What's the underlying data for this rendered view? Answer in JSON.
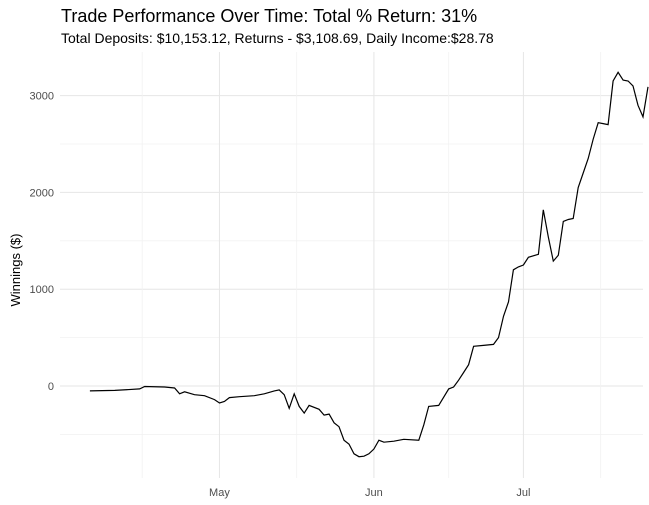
{
  "chart_data": {
    "type": "line",
    "title": "Trade Performance Over Time: Total % Return: 31%",
    "subtitle": "Total Deposits: $10,153.12, Returns - $3,108.69, Daily Income:$28.78",
    "xlabel": "",
    "ylabel": "Winnings ($)",
    "x_ticks": [
      {
        "label": "May",
        "date": "2023-05-01"
      },
      {
        "label": "Jun",
        "date": "2023-06-01"
      },
      {
        "label": "Jul",
        "date": "2023-07-01"
      }
    ],
    "y_ticks": [
      0,
      1000,
      2000,
      3000
    ],
    "xlim": [
      "2023-03-30",
      "2023-07-25"
    ],
    "ylim": [
      -950,
      3450
    ],
    "grid": true,
    "legend": "none",
    "line_color": "#000000",
    "series": [
      {
        "points": [
          [
            "2023-04-05",
            -50
          ],
          [
            "2023-04-10",
            -45
          ],
          [
            "2023-04-15",
            -30
          ],
          [
            "2023-04-16",
            -5
          ],
          [
            "2023-04-20",
            -10
          ],
          [
            "2023-04-22",
            -20
          ],
          [
            "2023-04-23",
            -80
          ],
          [
            "2023-04-24",
            -60
          ],
          [
            "2023-04-26",
            -90
          ],
          [
            "2023-04-28",
            -100
          ],
          [
            "2023-04-30",
            -140
          ],
          [
            "2023-05-01",
            -175
          ],
          [
            "2023-05-02",
            -160
          ],
          [
            "2023-05-03",
            -120
          ],
          [
            "2023-05-05",
            -110
          ],
          [
            "2023-05-08",
            -100
          ],
          [
            "2023-05-10",
            -80
          ],
          [
            "2023-05-12",
            -50
          ],
          [
            "2023-05-13",
            -40
          ],
          [
            "2023-05-14",
            -90
          ],
          [
            "2023-05-15",
            -230
          ],
          [
            "2023-05-16",
            -80
          ],
          [
            "2023-05-17",
            -210
          ],
          [
            "2023-05-18",
            -280
          ],
          [
            "2023-05-19",
            -200
          ],
          [
            "2023-05-21",
            -240
          ],
          [
            "2023-05-22",
            -300
          ],
          [
            "2023-05-23",
            -290
          ],
          [
            "2023-05-24",
            -380
          ],
          [
            "2023-05-25",
            -420
          ],
          [
            "2023-05-26",
            -560
          ],
          [
            "2023-05-27",
            -600
          ],
          [
            "2023-05-28",
            -700
          ],
          [
            "2023-05-29",
            -730
          ],
          [
            "2023-05-30",
            -725
          ],
          [
            "2023-05-31",
            -700
          ],
          [
            "2023-06-01",
            -650
          ],
          [
            "2023-06-02",
            -560
          ],
          [
            "2023-06-03",
            -580
          ],
          [
            "2023-06-05",
            -570
          ],
          [
            "2023-06-07",
            -550
          ],
          [
            "2023-06-10",
            -560
          ],
          [
            "2023-06-11",
            -400
          ],
          [
            "2023-06-12",
            -210
          ],
          [
            "2023-06-14",
            -200
          ],
          [
            "2023-06-16",
            -30
          ],
          [
            "2023-06-17",
            -10
          ],
          [
            "2023-06-18",
            60
          ],
          [
            "2023-06-19",
            140
          ],
          [
            "2023-06-20",
            220
          ],
          [
            "2023-06-21",
            410
          ],
          [
            "2023-06-23",
            420
          ],
          [
            "2023-06-25",
            430
          ],
          [
            "2023-06-26",
            500
          ],
          [
            "2023-06-27",
            720
          ],
          [
            "2023-06-28",
            870
          ],
          [
            "2023-06-29",
            1200
          ],
          [
            "2023-06-30",
            1230
          ],
          [
            "2023-07-01",
            1250
          ],
          [
            "2023-07-02",
            1330
          ],
          [
            "2023-07-04",
            1360
          ],
          [
            "2023-07-05",
            1820
          ],
          [
            "2023-07-06",
            1540
          ],
          [
            "2023-07-07",
            1290
          ],
          [
            "2023-07-08",
            1350
          ],
          [
            "2023-07-09",
            1700
          ],
          [
            "2023-07-10",
            1720
          ],
          [
            "2023-07-11",
            1730
          ],
          [
            "2023-07-12",
            2050
          ],
          [
            "2023-07-13",
            2200
          ],
          [
            "2023-07-14",
            2350
          ],
          [
            "2023-07-15",
            2550
          ],
          [
            "2023-07-16",
            2720
          ],
          [
            "2023-07-17",
            2710
          ],
          [
            "2023-07-18",
            2700
          ],
          [
            "2023-07-19",
            3150
          ],
          [
            "2023-07-20",
            3240
          ],
          [
            "2023-07-21",
            3160
          ],
          [
            "2023-07-22",
            3150
          ],
          [
            "2023-07-23",
            3100
          ],
          [
            "2023-07-24",
            2900
          ],
          [
            "2023-07-25",
            2780
          ],
          [
            "2023-07-26",
            3090
          ]
        ]
      }
    ]
  }
}
